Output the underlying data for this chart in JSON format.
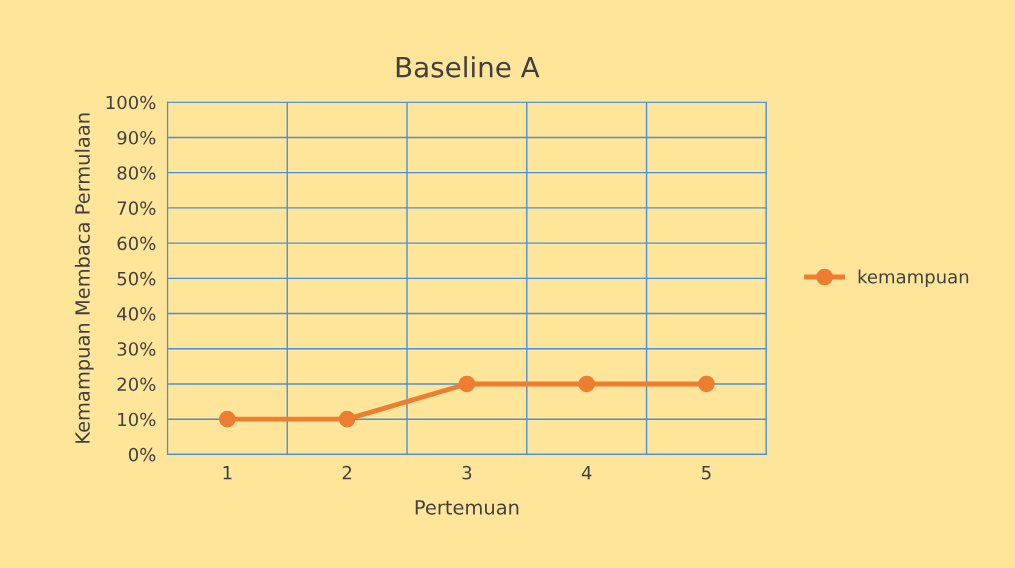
{
  "chart_data": {
    "type": "line",
    "title": "Baseline A",
    "xlabel": "Pertemuan",
    "ylabel": "Kemampuan Membaca Permulaan",
    "categories": [
      "1",
      "2",
      "3",
      "4",
      "5"
    ],
    "series": [
      {
        "name": "kemampuan",
        "color": "#ed7d31",
        "values": [
          10,
          10,
          20,
          20,
          20
        ]
      }
    ],
    "ylim": [
      0,
      100
    ],
    "yticks": [
      {
        "value": 0,
        "label": "0%"
      },
      {
        "value": 10,
        "label": "10%"
      },
      {
        "value": 20,
        "label": "20%"
      },
      {
        "value": 30,
        "label": "30%"
      },
      {
        "value": 40,
        "label": "40%"
      },
      {
        "value": 50,
        "label": "50%"
      },
      {
        "value": 60,
        "label": "60%"
      },
      {
        "value": 70,
        "label": "70%"
      },
      {
        "value": 80,
        "label": "80%"
      },
      {
        "value": 90,
        "label": "90%"
      },
      {
        "value": 100,
        "label": "100%"
      }
    ],
    "grid": true,
    "legend": "right",
    "marker": "circle",
    "line_style": "solid"
  }
}
